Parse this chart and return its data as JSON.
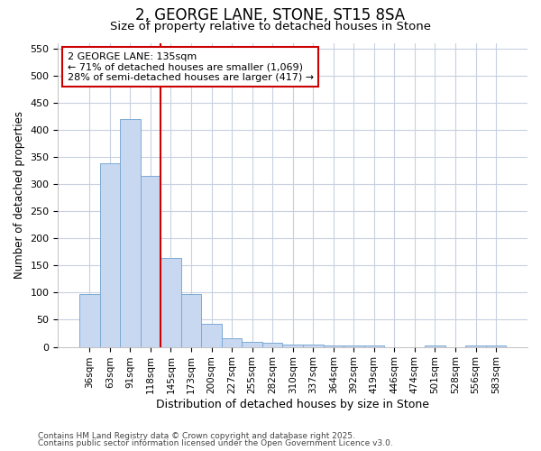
{
  "title1": "2, GEORGE LANE, STONE, ST15 8SA",
  "title2": "Size of property relative to detached houses in Stone",
  "xlabel": "Distribution of detached houses by size in Stone",
  "ylabel": "Number of detached properties",
  "categories": [
    "36sqm",
    "63sqm",
    "91sqm",
    "118sqm",
    "145sqm",
    "173sqm",
    "200sqm",
    "227sqm",
    "255sqm",
    "282sqm",
    "310sqm",
    "337sqm",
    "364sqm",
    "392sqm",
    "419sqm",
    "446sqm",
    "474sqm",
    "501sqm",
    "528sqm",
    "556sqm",
    "583sqm"
  ],
  "values": [
    97,
    338,
    420,
    315,
    163,
    97,
    43,
    16,
    10,
    8,
    5,
    4,
    3,
    2,
    2,
    0,
    0,
    3,
    0,
    3,
    3
  ],
  "bar_color": "#c8d8f0",
  "bar_edgecolor": "#7baad4",
  "bar_width": 1.0,
  "vline_color": "#cc0000",
  "annotation_text": "2 GEORGE LANE: 135sqm\n← 71% of detached houses are smaller (1,069)\n28% of semi-detached houses are larger (417) →",
  "annotation_box_color": "#ffffff",
  "annotation_box_edgecolor": "#cc0000",
  "ylim": [
    0,
    560
  ],
  "yticks": [
    0,
    50,
    100,
    150,
    200,
    250,
    300,
    350,
    400,
    450,
    500,
    550
  ],
  "footer1": "Contains HM Land Registry data © Crown copyright and database right 2025.",
  "footer2": "Contains public sector information licensed under the Open Government Licence v3.0.",
  "bg_color": "#ffffff",
  "grid_color": "#c8d0e0"
}
